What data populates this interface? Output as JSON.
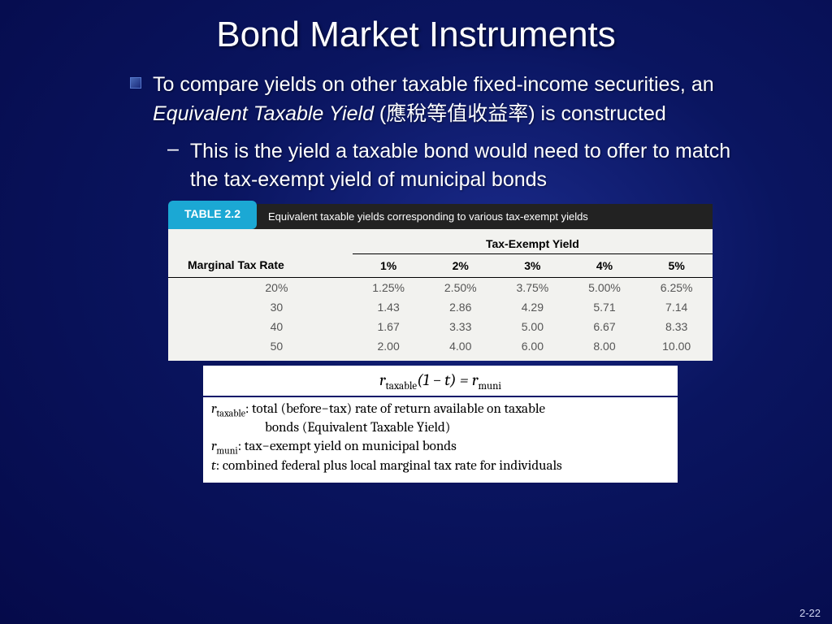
{
  "title": "Bond Market Instruments",
  "bullet": {
    "pre": "To compare yields on other taxable fixed-income securities, an ",
    "italic": "Equivalent Taxable Yield",
    "post": " (應稅等值收益率) is constructed"
  },
  "sub_bullet": "This is the yield a taxable bond would need to offer to match the tax-exempt yield of municipal bonds",
  "table": {
    "badge": "TABLE 2.2",
    "caption": "Equivalent taxable yields corresponding to various tax-exempt yields",
    "super_header": "Tax-Exempt Yield",
    "row_header": "Marginal Tax Rate",
    "col_headers": [
      "1%",
      "2%",
      "3%",
      "4%",
      "5%"
    ],
    "rows": [
      {
        "rate": "20%",
        "vals": [
          "1.25%",
          "2.50%",
          "3.75%",
          "5.00%",
          "6.25%"
        ]
      },
      {
        "rate": "30",
        "vals": [
          "1.43",
          "2.86",
          "4.29",
          "5.71",
          "7.14"
        ]
      },
      {
        "rate": "40",
        "vals": [
          "1.67",
          "3.33",
          "5.00",
          "6.67",
          "8.33"
        ]
      },
      {
        "rate": "50",
        "vals": [
          "2.00",
          "4.00",
          "6.00",
          "8.00",
          "10.00"
        ]
      }
    ]
  },
  "formula": {
    "eq_lhs_var": "r",
    "eq_lhs_sub": "taxable",
    "eq_mid": "(1 − t) = ",
    "eq_rhs_var": "r",
    "eq_rhs_sub": "muni",
    "defs": [
      {
        "sym_var": "r",
        "sym_sub": "taxable",
        "text": ": total (before−tax) rate of return available on taxable",
        "cont": "bonds (Equivalent Taxable Yield)"
      },
      {
        "sym_var": "r",
        "sym_sub": "muni",
        "text": ": tax−exempt yield on municipal bonds"
      },
      {
        "sym_var": "t",
        "sym_sub": "",
        "text": ":  combined federal plus local marginal tax rate for individuals"
      }
    ]
  },
  "page_num": "2-22"
}
